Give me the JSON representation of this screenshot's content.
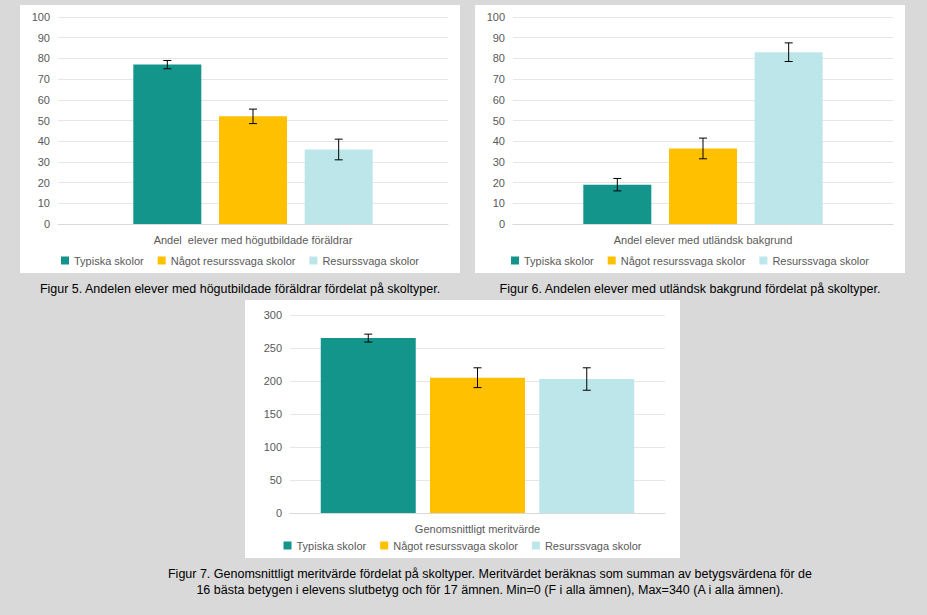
{
  "chart_data": [
    {
      "type": "bar",
      "caption": "Figur 5. Andelen elever med högutbildade föräldrar fördelat på skoltyper.",
      "categories": [
        "Andel  elever med högutbildade föräldrar"
      ],
      "series": [
        {
          "name": "Typiska skolor",
          "color": "#13958c",
          "values": [
            77
          ],
          "errors": [
            2
          ]
        },
        {
          "name": "Något resurssvaga skolor",
          "color": "#ffc000",
          "values": [
            52
          ],
          "errors": [
            3.5
          ]
        },
        {
          "name": "Resurssvaga skolor",
          "color": "#bde6ea",
          "values": [
            36
          ],
          "errors": [
            5
          ]
        }
      ],
      "ylim": [
        0,
        100
      ],
      "yticks": [
        0,
        10,
        20,
        30,
        40,
        50,
        60,
        70,
        80,
        90,
        100
      ],
      "grid": true,
      "legend": "bottom"
    },
    {
      "type": "bar",
      "caption": "Figur 6. Andelen elever med utländsk bakgrund fördelat på skoltyper.",
      "categories": [
        "Andel elever med utländsk bakgrund"
      ],
      "series": [
        {
          "name": "Typiska skolor",
          "color": "#13958c",
          "values": [
            19
          ],
          "errors": [
            3
          ]
        },
        {
          "name": "Något resurssvaga skolor",
          "color": "#ffc000",
          "values": [
            36.5
          ],
          "errors": [
            5
          ]
        },
        {
          "name": "Resurssvaga skolor",
          "color": "#bde6ea",
          "values": [
            83
          ],
          "errors": [
            4.5
          ]
        }
      ],
      "ylim": [
        0,
        100
      ],
      "yticks": [
        0,
        10,
        20,
        30,
        40,
        50,
        60,
        70,
        80,
        90,
        100
      ],
      "grid": true,
      "legend": "bottom"
    },
    {
      "type": "bar",
      "caption": "Figur 7. Genomsnittligt meritvärde fördelat på skoltyper. Meritvärdet beräknas som summan av betygsvärdena för de 16 bästa betygen i elevens slutbetyg och för 17 ämnen. Min=0 (F i alla ämnen), Max=340 (A i alla ämnen).",
      "categories": [
        "Genomsnittligt meritvärde"
      ],
      "series": [
        {
          "name": "Typiska skolor",
          "color": "#13958c",
          "values": [
            265
          ],
          "errors": [
            6
          ]
        },
        {
          "name": "Något resurssvaga skolor",
          "color": "#ffc000",
          "values": [
            205
          ],
          "errors": [
            15
          ]
        },
        {
          "name": "Resurssvaga skolor",
          "color": "#bde6ea",
          "values": [
            203
          ],
          "errors": [
            17
          ]
        }
      ],
      "ylim": [
        0,
        300
      ],
      "yticks": [
        0,
        50,
        100,
        150,
        200,
        250,
        300
      ],
      "grid": true,
      "legend": "bottom"
    }
  ]
}
